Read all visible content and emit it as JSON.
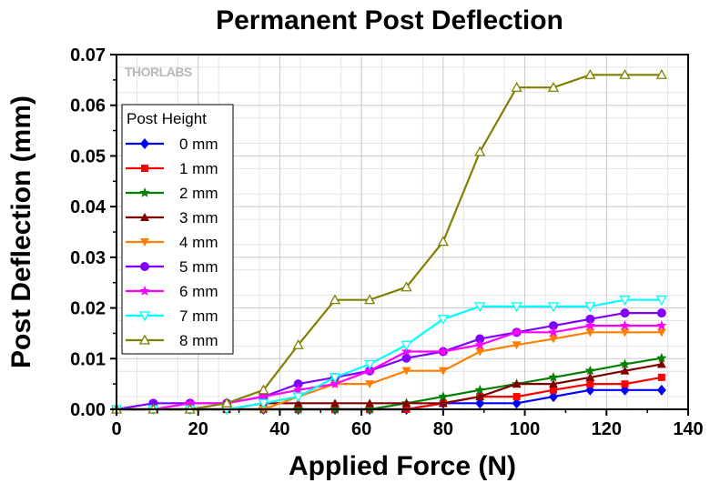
{
  "chart_data": {
    "type": "line",
    "title": "Permanent Post Deflection",
    "xlabel": "Applied Force (N)",
    "ylabel": "Post Deflection (mm)",
    "xlim": [
      0,
      140
    ],
    "ylim": [
      0,
      0.07
    ],
    "xticks": [
      "0",
      "20",
      "40",
      "60",
      "80",
      "100",
      "120",
      "140"
    ],
    "yticks": [
      "0.00",
      "0.01",
      "0.02",
      "0.03",
      "0.04",
      "0.05",
      "0.06",
      "0.07"
    ],
    "grid": true,
    "legend_title": "Post Height",
    "legend_position": "top-left",
    "watermark": "THORLABS",
    "x": [
      0,
      9,
      18,
      27,
      36,
      44.5,
      53.5,
      62,
      71,
      80,
      89,
      98,
      107,
      116,
      124.5,
      133.5
    ],
    "series": [
      {
        "name": "0 mm",
        "color": "#0000ff",
        "marker": "diamond",
        "values": [
          0,
          0,
          0,
          0,
          0,
          0,
          0,
          0,
          0,
          0.0012,
          0.0012,
          0.0012,
          0.0025,
          0.0038,
          0.0038,
          0.0038
        ]
      },
      {
        "name": "1 mm",
        "color": "#ff0000",
        "marker": "square",
        "values": [
          0,
          0,
          0,
          0,
          0,
          0,
          0,
          0,
          0,
          0.0012,
          0.0025,
          0.0025,
          0.0038,
          0.005,
          0.005,
          0.0063
        ]
      },
      {
        "name": "2 mm",
        "color": "#008000",
        "marker": "star",
        "values": [
          0,
          0,
          0,
          0,
          0,
          0,
          0,
          0,
          0.0012,
          0.0025,
          0.0038,
          0.005,
          0.0063,
          0.0076,
          0.0089,
          0.0101
        ]
      },
      {
        "name": "3 mm",
        "color": "#800000",
        "marker": "triangle-up",
        "values": [
          0,
          0,
          0,
          0,
          0.0012,
          0.0012,
          0.0012,
          0.0012,
          0.0012,
          0.0012,
          0.0025,
          0.005,
          0.005,
          0.0063,
          0.0076,
          0.0089
        ]
      },
      {
        "name": "4 mm",
        "color": "#ff8000",
        "marker": "triangle-down",
        "values": [
          0,
          0,
          0,
          0,
          0,
          0.0025,
          0.005,
          0.005,
          0.0076,
          0.0076,
          0.0114,
          0.0127,
          0.0139,
          0.0152,
          0.0152,
          0.0152
        ]
      },
      {
        "name": "5 mm",
        "color": "#8000ff",
        "marker": "circle",
        "values": [
          0,
          0.0012,
          0.0012,
          0.0012,
          0.0025,
          0.005,
          0.0063,
          0.0076,
          0.0101,
          0.0114,
          0.0139,
          0.0152,
          0.0165,
          0.0178,
          0.019,
          0.019
        ]
      },
      {
        "name": "6 mm",
        "color": "#ff00ff",
        "marker": "star",
        "values": [
          0,
          0,
          0.0012,
          0.0012,
          0.0025,
          0.0038,
          0.005,
          0.0076,
          0.0114,
          0.0114,
          0.0127,
          0.0152,
          0.0152,
          0.0165,
          0.0165,
          0.0165
        ]
      },
      {
        "name": "7 mm",
        "color": "#00ffff",
        "marker": "triangle-down-open",
        "values": [
          0,
          0,
          0,
          0,
          0.0012,
          0.0025,
          0.0063,
          0.0089,
          0.0127,
          0.0178,
          0.0203,
          0.0203,
          0.0203,
          0.0203,
          0.0216,
          0.0216
        ]
      },
      {
        "name": "8 mm",
        "color": "#808000",
        "marker": "triangle-up-open",
        "values": [
          0,
          0,
          0,
          0.0012,
          0.0038,
          0.0127,
          0.0216,
          0.0216,
          0.0241,
          0.0331,
          0.0508,
          0.0635,
          0.0635,
          0.066,
          0.066,
          0.066
        ]
      }
    ]
  }
}
